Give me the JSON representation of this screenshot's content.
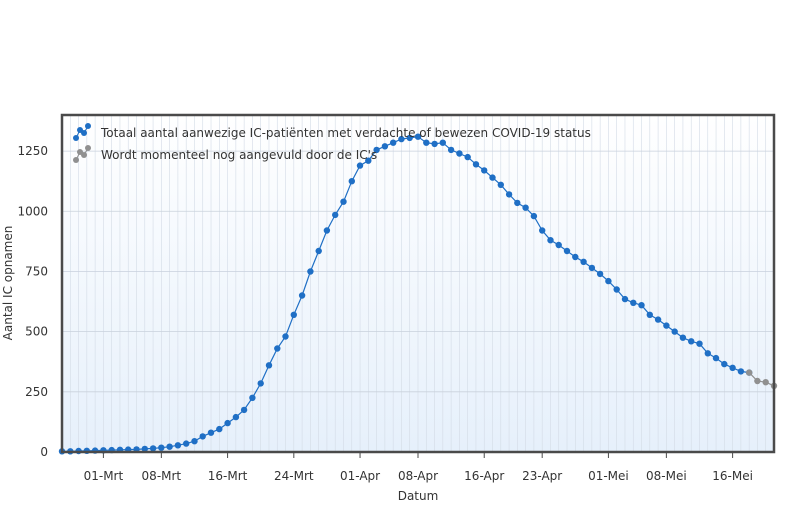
{
  "chart_data": {
    "type": "line",
    "title": "",
    "xlabel": "Datum",
    "ylabel": "Aantal IC opnamen",
    "ylim": [
      0,
      1400
    ],
    "y_ticks": [
      0,
      250,
      500,
      750,
      1000,
      1250
    ],
    "x_range": [
      "2020-02-25",
      "2020-05-21"
    ],
    "x_ticks": [
      {
        "date": "2020-03-01",
        "label": "01-Mrt"
      },
      {
        "date": "2020-03-08",
        "label": "08-Mrt"
      },
      {
        "date": "2020-03-16",
        "label": "16-Mrt"
      },
      {
        "date": "2020-03-24",
        "label": "24-Mrt"
      },
      {
        "date": "2020-04-01",
        "label": "01-Apr"
      },
      {
        "date": "2020-04-08",
        "label": "08-Apr"
      },
      {
        "date": "2020-04-16",
        "label": "16-Apr"
      },
      {
        "date": "2020-04-23",
        "label": "23-Apr"
      },
      {
        "date": "2020-05-01",
        "label": "01-Mei"
      },
      {
        "date": "2020-05-08",
        "label": "08-Mei"
      },
      {
        "date": "2020-05-16",
        "label": "16-Mei"
      }
    ],
    "grid": true,
    "legend_position": "top-left",
    "series": [
      {
        "name": "Totaal aantal aanwezige IC-patiënten met verdachte of bewezen COVID-19 status",
        "color": "#1f6fc5",
        "x": [
          "2020-02-25",
          "2020-02-26",
          "2020-02-27",
          "2020-02-28",
          "2020-02-29",
          "2020-03-01",
          "2020-03-02",
          "2020-03-03",
          "2020-03-04",
          "2020-03-05",
          "2020-03-06",
          "2020-03-07",
          "2020-03-08",
          "2020-03-09",
          "2020-03-10",
          "2020-03-11",
          "2020-03-12",
          "2020-03-13",
          "2020-03-14",
          "2020-03-15",
          "2020-03-16",
          "2020-03-17",
          "2020-03-18",
          "2020-03-19",
          "2020-03-20",
          "2020-03-21",
          "2020-03-22",
          "2020-03-23",
          "2020-03-24",
          "2020-03-25",
          "2020-03-26",
          "2020-03-27",
          "2020-03-28",
          "2020-03-29",
          "2020-03-30",
          "2020-03-31",
          "2020-04-01",
          "2020-04-02",
          "2020-04-03",
          "2020-04-04",
          "2020-04-05",
          "2020-04-06",
          "2020-04-07",
          "2020-04-08",
          "2020-04-09",
          "2020-04-10",
          "2020-04-11",
          "2020-04-12",
          "2020-04-13",
          "2020-04-14",
          "2020-04-15",
          "2020-04-16",
          "2020-04-17",
          "2020-04-18",
          "2020-04-19",
          "2020-04-20",
          "2020-04-21",
          "2020-04-22",
          "2020-04-23",
          "2020-04-24",
          "2020-04-25",
          "2020-04-26",
          "2020-04-27",
          "2020-04-28",
          "2020-04-29",
          "2020-04-30",
          "2020-05-01",
          "2020-05-02",
          "2020-05-03",
          "2020-05-04",
          "2020-05-05",
          "2020-05-06",
          "2020-05-07",
          "2020-05-08",
          "2020-05-09",
          "2020-05-10",
          "2020-05-11",
          "2020-05-12",
          "2020-05-13",
          "2020-05-14",
          "2020-05-15",
          "2020-05-16",
          "2020-05-17",
          "2020-05-18"
        ],
        "y": [
          3,
          3,
          4,
          5,
          6,
          7,
          8,
          9,
          10,
          11,
          13,
          15,
          18,
          22,
          28,
          35,
          45,
          65,
          80,
          95,
          120,
          145,
          175,
          225,
          285,
          360,
          430,
          480,
          570,
          650,
          750,
          835,
          920,
          985,
          1040,
          1125,
          1190,
          1210,
          1255,
          1270,
          1285,
          1300,
          1305,
          1310,
          1285,
          1280,
          1285,
          1255,
          1240,
          1225,
          1195,
          1170,
          1140,
          1110,
          1070,
          1035,
          1015,
          980,
          920,
          880,
          860,
          835,
          810,
          790,
          765,
          740,
          710,
          675,
          635,
          620,
          610,
          570,
          550,
          525,
          500,
          475,
          460,
          450,
          410,
          390,
          365,
          350,
          335,
          330
        ]
      },
      {
        "name": "Wordt momenteel nog aangevuld door de IC's",
        "color": "#909090",
        "x": [
          "2020-05-18",
          "2020-05-19",
          "2020-05-20",
          "2020-05-21"
        ],
        "y": [
          330,
          295,
          290,
          275
        ]
      }
    ]
  }
}
